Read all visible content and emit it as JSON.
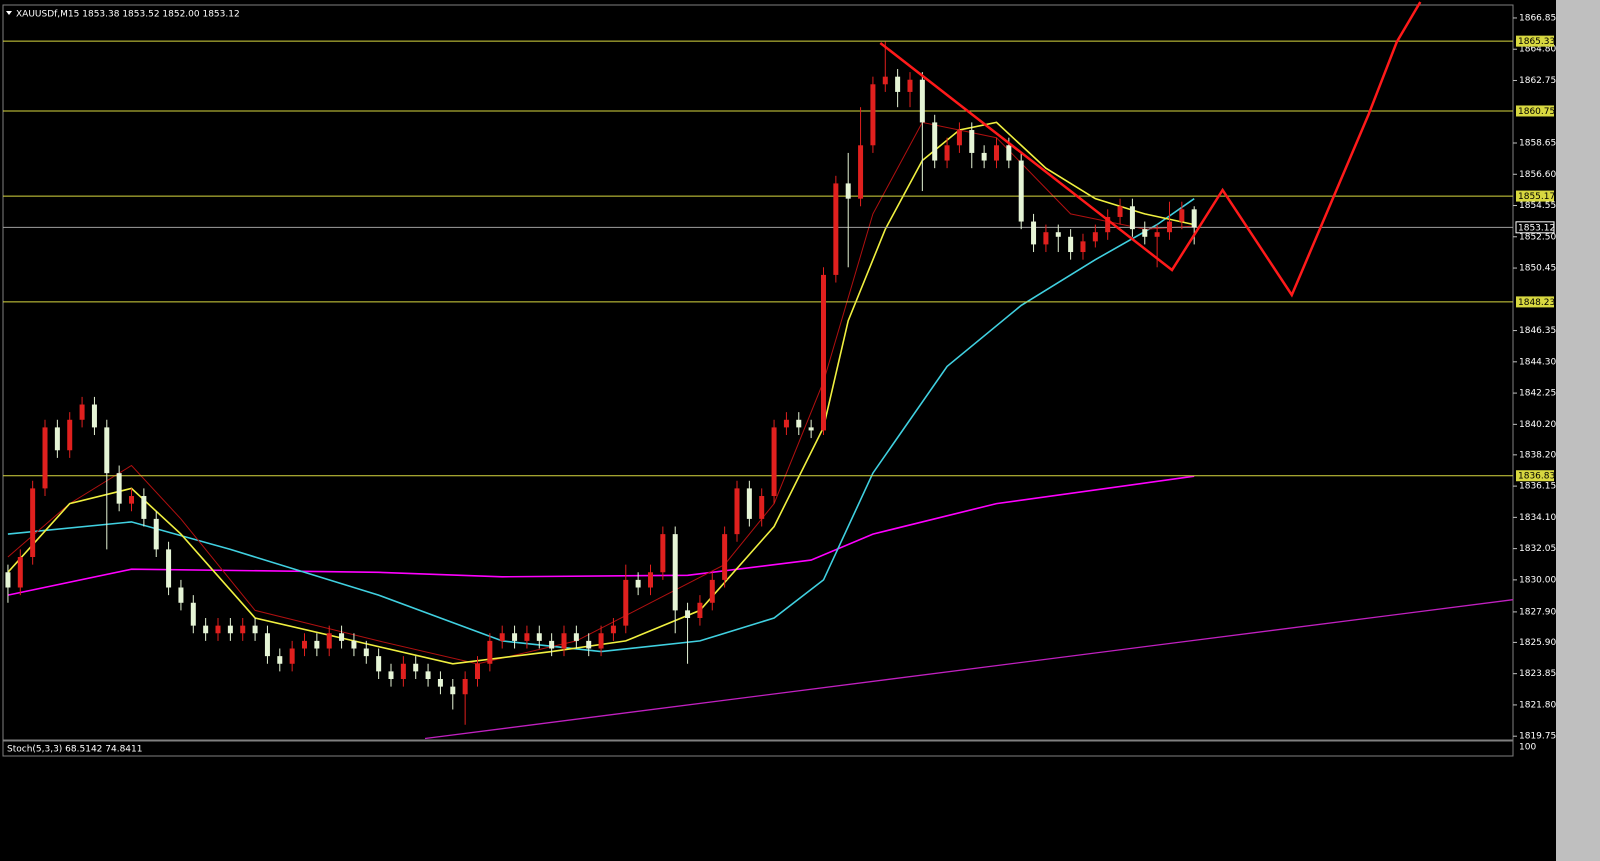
{
  "chart_data": {
    "type": "candlestick",
    "title": "XAUUSDf,M15  1853.38 1853.52 1852.00 1853.12",
    "up_color": "#e0201e",
    "down_color": "#e6f5d6",
    "xlim": [
      -0.4,
      121.8
    ],
    "ylim": [
      1819.5,
      1867.7
    ],
    "yticks": [
      1866.85,
      {
        "value": 1864.8,
        "label": "1864.80"
      },
      1862.75,
      1858.65,
      {
        "value": 1856.6,
        "label": "1856.60"
      },
      1854.55,
      {
        "value": 1852.5,
        "label": "1852.50"
      },
      1850.45,
      1846.35,
      {
        "value": 1844.3,
        "label": "1844.30"
      },
      1842.25,
      {
        "value": 1840.2,
        "label": "1840.20"
      },
      {
        "value": 1838.2,
        "label": "1838.20"
      },
      1836.15,
      {
        "value": 1834.1,
        "label": "1834.10"
      },
      1832.05,
      {
        "value": 1830,
        "label": "1830.00"
      },
      {
        "value": 1827.9,
        "label": "1827.90"
      },
      {
        "value": 1825.9,
        "label": "1825.90"
      },
      1823.85,
      {
        "value": 1821.8,
        "label": "1821.80"
      },
      1819.75
    ],
    "open": [
      1830.5,
      1829.5,
      1831.5,
      1836,
      1840,
      1838.5,
      1840.5,
      1841.5,
      1840,
      1837,
      1835,
      1835.5,
      1834,
      1832,
      1829.5,
      1828.5,
      1827,
      1826.5,
      1827,
      1826.5,
      1827,
      1826.5,
      1825,
      1824.5,
      1825.5,
      1826,
      1825.5,
      1826.5,
      1826,
      1825.5,
      1825,
      1824,
      1823.5,
      1824.5,
      1824,
      1823.5,
      1823,
      1822.5,
      1823.5,
      1824.5,
      1826,
      1826.5,
      1826,
      1826.5,
      1826,
      1825.5,
      1826.5,
      1826,
      1825.5,
      1826.5,
      1827,
      1830,
      1829.5,
      1830.5,
      1833,
      1828,
      1827.5,
      1828.5,
      1830,
      1833,
      1836,
      1834,
      1835.5,
      1840,
      1840.5,
      1840,
      1839.8,
      1850,
      1856,
      1855,
      1858.5,
      1862.5,
      1863,
      1862,
      1862.8,
      1860,
      1857.5,
      1858.5,
      1859.5,
      1858,
      1857.5,
      1858.5,
      1857.5,
      1853.5,
      1852,
      1852.8,
      1852.5,
      1851.5,
      1852.2,
      1852.8,
      1853.8,
      1854.5,
      1853,
      1852.5,
      1852.8,
      1853.5,
      1854.3
    ],
    "high": [
      1831,
      1832,
      1836.5,
      1840.5,
      1840.5,
      1841,
      1842,
      1842,
      1840.5,
      1837.5,
      1836,
      1836,
      1834.5,
      1832.5,
      1830,
      1829,
      1827.5,
      1827.5,
      1827.5,
      1827.5,
      1827.5,
      1827,
      1825.5,
      1826,
      1826.5,
      1826.5,
      1827,
      1827,
      1826.5,
      1826,
      1825.5,
      1824.5,
      1825,
      1825,
      1824.5,
      1824,
      1823.5,
      1824,
      1825,
      1826.5,
      1827,
      1827,
      1827,
      1827,
      1826.5,
      1827,
      1827,
      1826.5,
      1827,
      1827.5,
      1831,
      1830.5,
      1831,
      1833.5,
      1833.5,
      1828.5,
      1829,
      1830.5,
      1833.5,
      1836.5,
      1836.5,
      1836,
      1840.5,
      1841,
      1841,
      1840.5,
      1850.5,
      1856.5,
      1858,
      1861,
      1863,
      1865.3,
      1863.5,
      1863.3,
      1863.3,
      1860.5,
      1859,
      1860,
      1860,
      1858.5,
      1859,
      1859,
      1858,
      1854,
      1853.3,
      1853.3,
      1853,
      1852.7,
      1853.3,
      1854.3,
      1855,
      1855,
      1853.5,
      1853.3,
      1854.8,
      1854.8,
      1854.5
    ],
    "low": [
      1828.5,
      1829,
      1831,
      1835.5,
      1838,
      1838,
      1840,
      1839.5,
      1832,
      1834.5,
      1834.5,
      1833.5,
      1831.5,
      1829,
      1828,
      1826.5,
      1826,
      1826,
      1826,
      1826,
      1826,
      1824.5,
      1824,
      1824,
      1825,
      1825,
      1825,
      1825.5,
      1825,
      1824.5,
      1823.5,
      1823,
      1823,
      1823.5,
      1823,
      1822.5,
      1821.5,
      1820.5,
      1823,
      1824,
      1825.5,
      1825.5,
      1825.5,
      1825.5,
      1825,
      1825,
      1825.5,
      1825,
      1825,
      1826,
      1826.5,
      1829,
      1829,
      1830,
      1826.5,
      1824.5,
      1827,
      1828,
      1829.5,
      1832.5,
      1833.5,
      1833.5,
      1835,
      1839.5,
      1839.5,
      1839.3,
      1839.5,
      1849.5,
      1850.5,
      1854.5,
      1858,
      1862,
      1861,
      1861,
      1855.5,
      1857,
      1857,
      1858,
      1857,
      1857,
      1857,
      1857,
      1853,
      1851.5,
      1851.5,
      1851.5,
      1851,
      1851,
      1851.8,
      1852.3,
      1853.3,
      1852.5,
      1852,
      1850.5,
      1852.3,
      1853,
      1852
    ],
    "close": [
      1829.5,
      1831.5,
      1836,
      1840,
      1838.5,
      1840.5,
      1841.5,
      1840,
      1837,
      1835,
      1835.5,
      1834,
      1832,
      1829.5,
      1828.5,
      1827,
      1826.5,
      1827,
      1826.5,
      1827,
      1826.5,
      1825,
      1824.5,
      1825.5,
      1826,
      1825.5,
      1826.5,
      1826,
      1825.5,
      1825,
      1824,
      1823.5,
      1824.5,
      1824,
      1823.5,
      1823,
      1822.5,
      1823.5,
      1824.5,
      1826,
      1826.5,
      1826,
      1826.5,
      1826,
      1825.5,
      1826.5,
      1826,
      1825.5,
      1826.5,
      1827,
      1830,
      1829.5,
      1830.5,
      1833,
      1828,
      1827.5,
      1828.5,
      1830,
      1833,
      1836,
      1834,
      1835.5,
      1840,
      1840.5,
      1840,
      1839.8,
      1850,
      1856,
      1855,
      1858.5,
      1862.5,
      1863,
      1862,
      1862.8,
      1860,
      1857.5,
      1858.5,
      1859.5,
      1858,
      1857.5,
      1858.5,
      1857.5,
      1853.5,
      1852,
      1852.8,
      1852.5,
      1851.5,
      1852.2,
      1852.8,
      1853.8,
      1854.5,
      1853,
      1852.5,
      1852.8,
      1853.5,
      1854.3,
      1853.12
    ],
    "moving_averages": [
      {
        "color": "#ff00ff",
        "x": [
          0,
          10,
          30,
          40,
          55,
          65,
          70,
          80,
          96
        ],
        "values": [
          1829,
          1830.7,
          1830.5,
          1830.2,
          1830.3,
          1831.3,
          1833,
          1835,
          1836.8
        ]
      },
      {
        "color": "#40d0e0",
        "x": [
          0,
          10,
          18,
          30,
          40,
          48,
          56,
          62,
          66,
          70,
          76,
          82,
          88,
          93,
          96
        ],
        "values": [
          1833,
          1833.8,
          1832,
          1829,
          1826,
          1825.3,
          1826,
          1827.5,
          1830,
          1837,
          1844,
          1848,
          1851,
          1853.3,
          1855
        ]
      },
      {
        "color": "#b01010",
        "x": [
          0,
          5,
          10,
          14,
          20,
          30,
          38,
          46,
          52,
          58,
          62,
          66,
          70,
          74,
          80,
          86,
          92,
          96
        ],
        "values": [
          1831.5,
          1835,
          1837.5,
          1834,
          1828,
          1826,
          1824.5,
          1826,
          1828.5,
          1831,
          1835,
          1843,
          1854,
          1860,
          1859,
          1854,
          1853,
          1853.2
        ]
      },
      {
        "color": "#f0f040",
        "x": [
          0,
          5,
          10,
          14,
          20,
          28,
          36,
          44,
          50,
          56,
          62,
          66,
          68,
          71,
          74,
          77,
          80,
          84,
          88,
          92,
          96
        ],
        "values": [
          1830.5,
          1835,
          1836,
          1833,
          1827.5,
          1826,
          1824.5,
          1825.3,
          1826,
          1828,
          1833.5,
          1840,
          1847,
          1853,
          1857.5,
          1859.5,
          1860,
          1857,
          1855,
          1854,
          1853.3
        ]
      }
    ],
    "trendline": {
      "color": "#c020c0",
      "x": [
        33.75,
        121.8
      ],
      "values": [
        1819.6,
        1828.7
      ]
    },
    "levels": [
      {
        "value": 1865.33,
        "color": "#d8d840"
      },
      {
        "value": 1860.75,
        "color": "#d8d840"
      },
      {
        "value": 1855.17,
        "color": "#d8d840"
      },
      {
        "value": 1848.23,
        "color": "#d8d840"
      },
      {
        "value": 1836.83,
        "color": "#d8d840"
      },
      {
        "value": 1853.12,
        "color": "#a0a0a0"
      }
    ],
    "projection": {
      "color": "#ff1a1a",
      "x": [
        70.6,
        94.2,
        98.3,
        103.9,
        110.1,
        112.4,
        114.3
      ],
      "values": [
        1865.21,
        1850.32,
        1855.57,
        1848.68,
        1860.49,
        1865.28,
        1867.9
      ]
    },
    "indicator_label": "Stoch(5,3,3) 68.5142 74.8411",
    "indicator_ticks": [
      100
    ]
  }
}
